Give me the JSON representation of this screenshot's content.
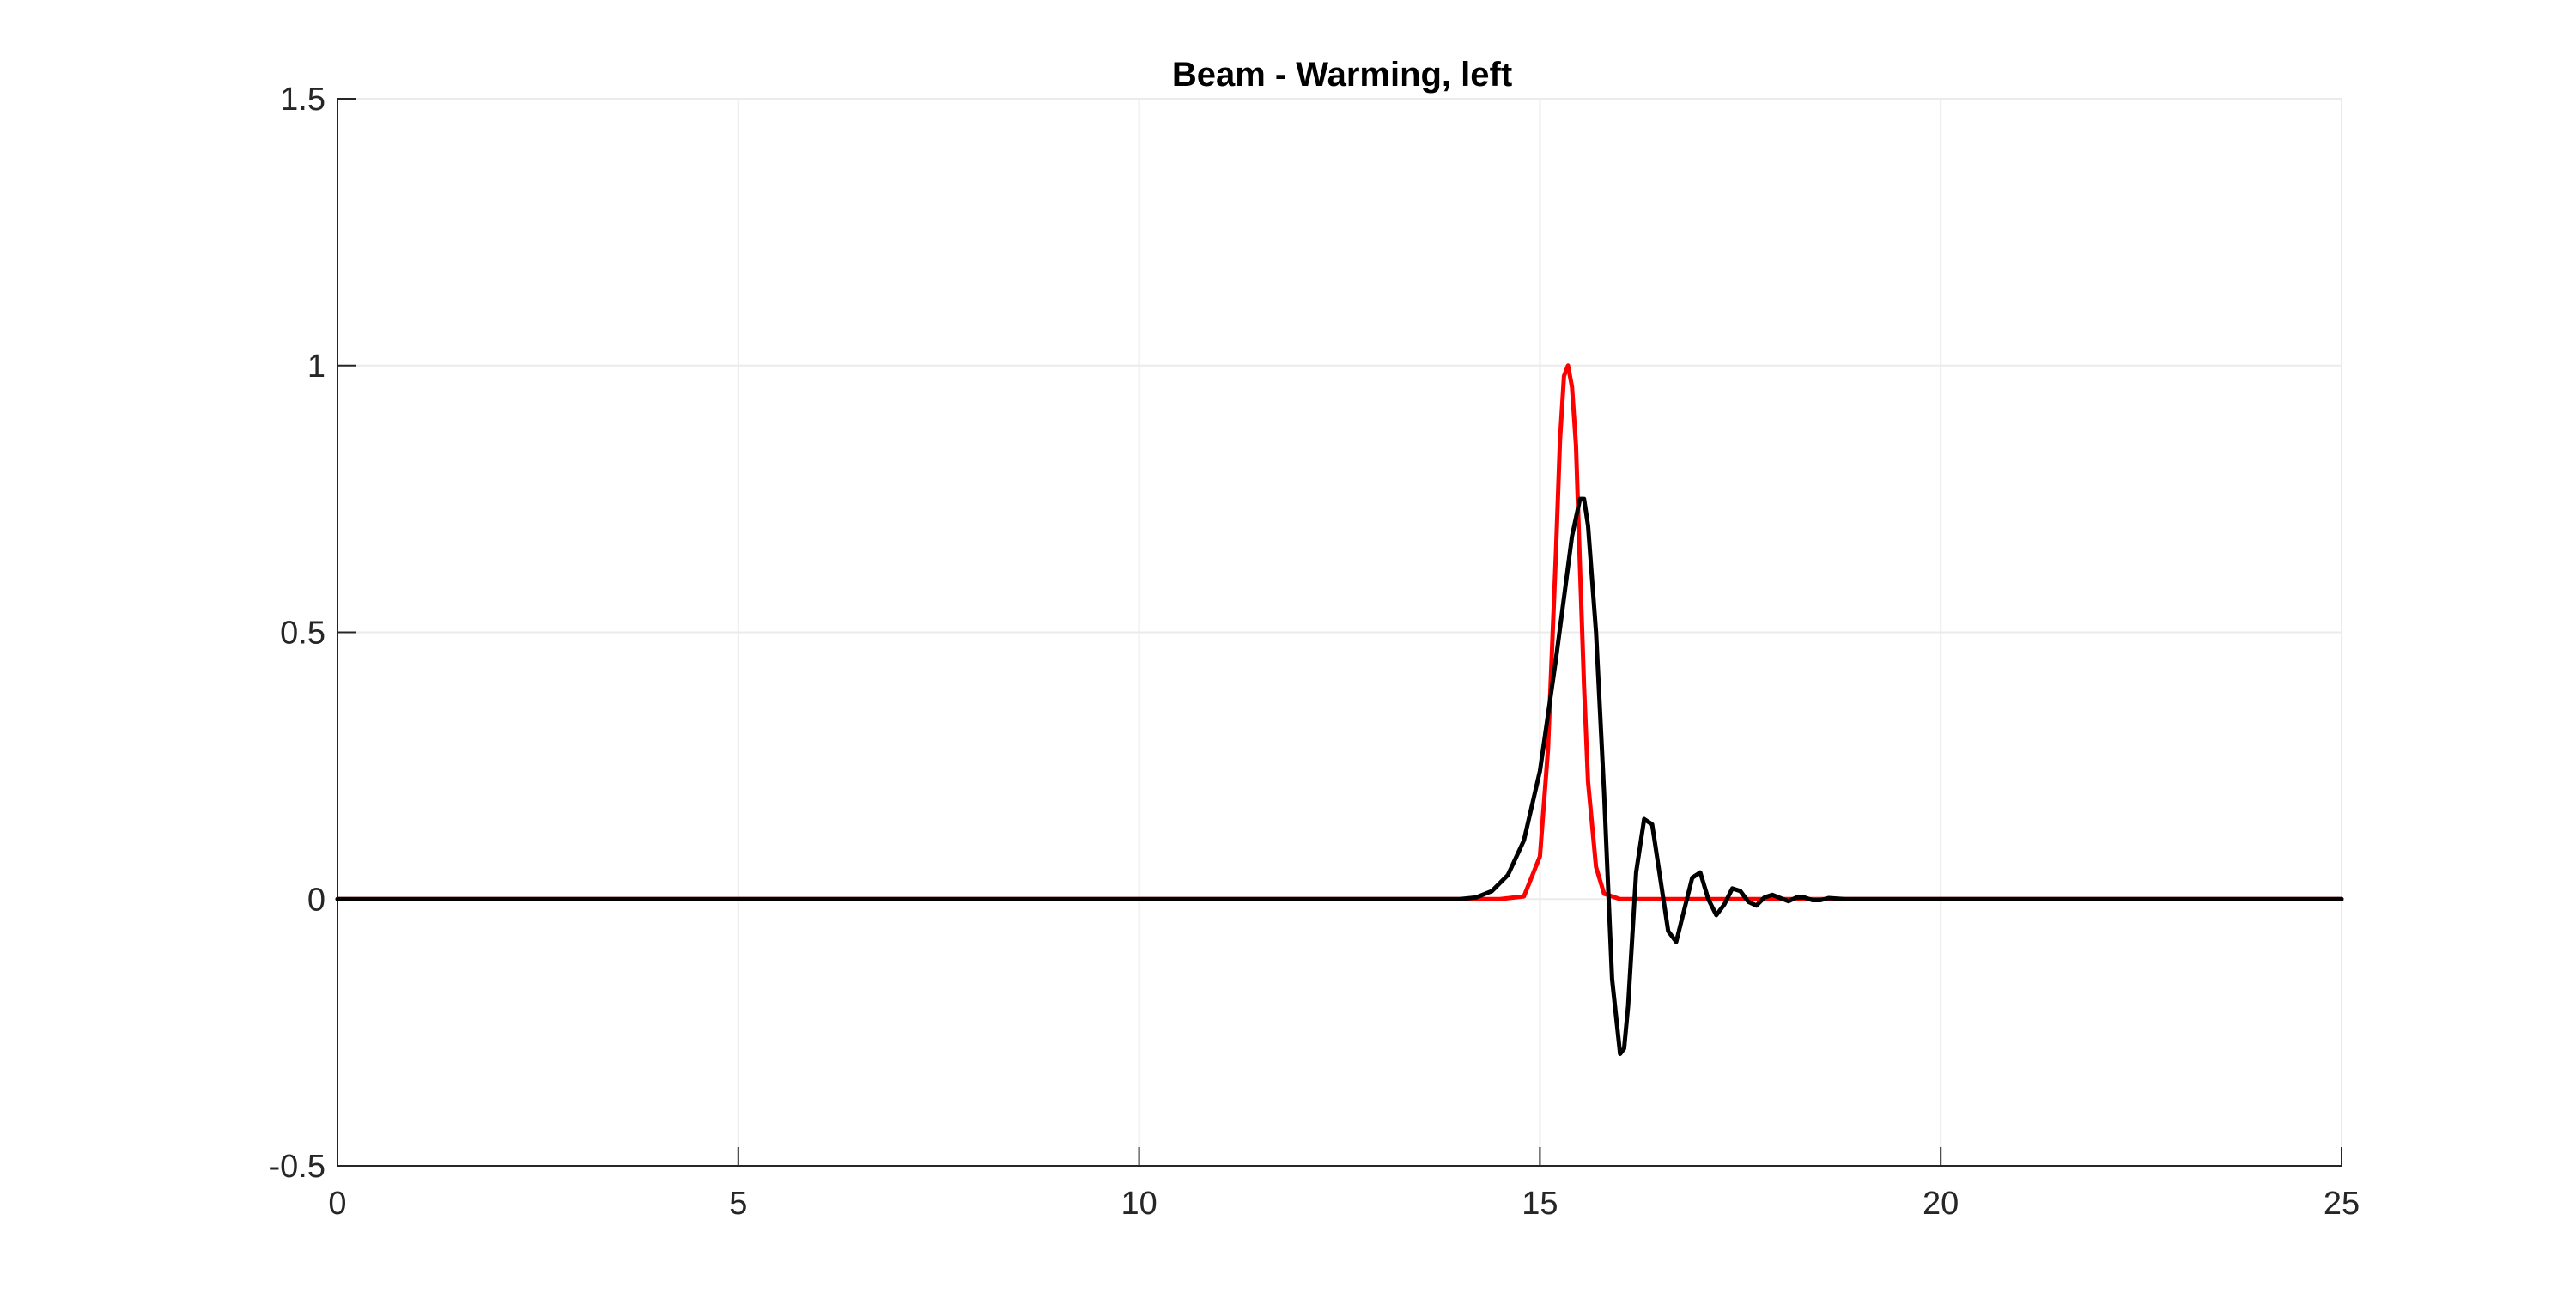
{
  "chart_data": {
    "type": "line",
    "title": "Beam - Warming, left",
    "xlabel": "",
    "ylabel": "",
    "xlim": [
      0,
      25
    ],
    "ylim": [
      -0.5,
      1.5
    ],
    "xticks": [
      0,
      5,
      10,
      15,
      20,
      25
    ],
    "yticks": [
      -0.5,
      0,
      0.5,
      1,
      1.5
    ],
    "xtick_labels": [
      "0",
      "5",
      "10",
      "15",
      "20",
      "25"
    ],
    "ytick_labels": [
      "-0.5",
      "0",
      "0.5",
      "1",
      "1.5"
    ],
    "grid": true,
    "legend": "none",
    "series": [
      {
        "color": "#ff0000",
        "x": [
          0,
          14.5,
          14.8,
          15.0,
          15.1,
          15.2,
          15.25,
          15.3,
          15.35,
          15.4,
          15.45,
          15.5,
          15.55,
          15.6,
          15.7,
          15.8,
          16.0,
          25
        ],
        "y": [
          0,
          0,
          0.005,
          0.08,
          0.28,
          0.65,
          0.86,
          0.98,
          1.0,
          0.96,
          0.85,
          0.62,
          0.4,
          0.22,
          0.06,
          0.01,
          0,
          0
        ]
      },
      {
        "color": "#000000",
        "x": [
          0,
          14.0,
          14.2,
          14.4,
          14.6,
          14.8,
          15.0,
          15.2,
          15.4,
          15.5,
          15.55,
          15.6,
          15.7,
          15.8,
          15.9,
          16.0,
          16.05,
          16.1,
          16.2,
          16.3,
          16.4,
          16.5,
          16.6,
          16.7,
          16.8,
          16.9,
          17.0,
          17.1,
          17.2,
          17.3,
          17.4,
          17.5,
          17.6,
          17.7,
          17.8,
          17.9,
          18.0,
          18.1,
          18.2,
          18.3,
          18.4,
          18.5,
          18.6,
          18.7,
          18.8,
          19.0,
          25
        ],
        "y": [
          0,
          0,
          0.003,
          0.015,
          0.045,
          0.11,
          0.24,
          0.45,
          0.68,
          0.75,
          0.75,
          0.7,
          0.5,
          0.2,
          -0.15,
          -0.29,
          -0.28,
          -0.2,
          0.05,
          0.15,
          0.14,
          0.04,
          -0.06,
          -0.08,
          -0.02,
          0.04,
          0.05,
          0.0,
          -0.03,
          -0.01,
          0.02,
          0.015,
          -0.005,
          -0.012,
          0.003,
          0.008,
          0.002,
          -0.004,
          0.003,
          0.003,
          -0.002,
          -0.002,
          0.002,
          0.001,
          0,
          0,
          0
        ]
      }
    ]
  }
}
